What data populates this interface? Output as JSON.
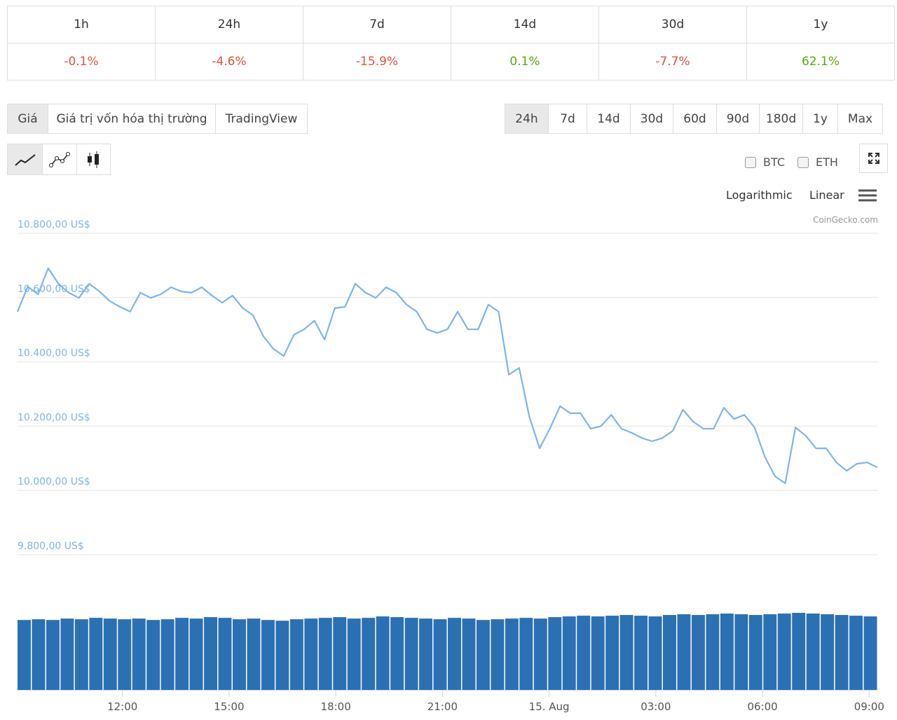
{
  "changes": {
    "headers": [
      "1h",
      "24h",
      "7d",
      "14d",
      "30d",
      "1y"
    ],
    "values": [
      "-0.1%",
      "-4.6%",
      "-15.9%",
      "0.1%",
      "-7.7%",
      "62.1%"
    ],
    "up_color": "#4eaf0a",
    "down_color": "#e15241"
  },
  "chart_tabs": [
    "Giá",
    "Giá trị vốn hóa thị trường",
    "TradingView"
  ],
  "active_tab": 0,
  "ranges": [
    "24h",
    "7d",
    "14d",
    "30d",
    "60d",
    "90d",
    "180d",
    "1y",
    "Max"
  ],
  "active_range": 0,
  "compare": [
    "BTC",
    "ETH"
  ],
  "scales": [
    "Logarithmic",
    "Linear"
  ],
  "credit": "CoinGecko.com",
  "chart_data": {
    "type": "line",
    "color": "#7cb5ec",
    "grid": true,
    "ylim": [
      9800,
      10800
    ],
    "yticks": [
      {
        "value": 10800,
        "label": "10.800,00 US$"
      },
      {
        "value": 10600,
        "label": "10.600,00 US$"
      },
      {
        "value": 10400,
        "label": "10.400,00 US$"
      },
      {
        "value": 10200,
        "label": "10.200,00 US$"
      },
      {
        "value": 10000,
        "label": "10.000,00 US$"
      },
      {
        "value": 9800,
        "label": "9.800,00 US$"
      }
    ],
    "xlim": [
      9.05,
      33.25
    ],
    "xticks": [
      {
        "value": 12,
        "label": "12:00"
      },
      {
        "value": 15,
        "label": "15:00"
      },
      {
        "value": 18,
        "label": "18:00"
      },
      {
        "value": 21,
        "label": "21:00"
      },
      {
        "value": 24,
        "label": "15. Aug"
      },
      {
        "value": 27,
        "label": "03:00"
      },
      {
        "value": 30,
        "label": "06:00"
      },
      {
        "value": 33,
        "label": "09:00"
      }
    ],
    "values": [
      10556,
      10634,
      10610,
      10691,
      10643,
      10615,
      10599,
      10643,
      10619,
      10589,
      10571,
      10556,
      10615,
      10599,
      10610,
      10632,
      10619,
      10615,
      10632,
      10606,
      10584,
      10606,
      10567,
      10545,
      10480,
      10440,
      10418,
      10484,
      10501,
      10528,
      10469,
      10567,
      10571,
      10643,
      10615,
      10599,
      10632,
      10615,
      10578,
      10556,
      10501,
      10490,
      10501,
      10556,
      10501,
      10501,
      10578,
      10556,
      10360,
      10381,
      10229,
      10131,
      10192,
      10262,
      10240,
      10240,
      10192,
      10200,
      10235,
      10192,
      10179,
      10163,
      10153,
      10163,
      10185,
      10251,
      10214,
      10192,
      10192,
      10257,
      10222,
      10235,
      10196,
      10105,
      10044,
      10022,
      10196,
      10170,
      10131,
      10131,
      10087,
      10061,
      10083,
      10087,
      10072
    ],
    "volume": {
      "color": "#2c70b4",
      "values": [
        98,
        99,
        98,
        100,
        99,
        101,
        100,
        99,
        100,
        98,
        99,
        101,
        100,
        102,
        101,
        99,
        100,
        98,
        97,
        99,
        100,
        101,
        102,
        100,
        101,
        103,
        102,
        101,
        100,
        99,
        101,
        100,
        98,
        99,
        100,
        101,
        100,
        102,
        103,
        104,
        103,
        104,
        105,
        104,
        103,
        105,
        106,
        105,
        106,
        107,
        106,
        105,
        106,
        107,
        108,
        107,
        106,
        105,
        104,
        103
      ]
    }
  }
}
